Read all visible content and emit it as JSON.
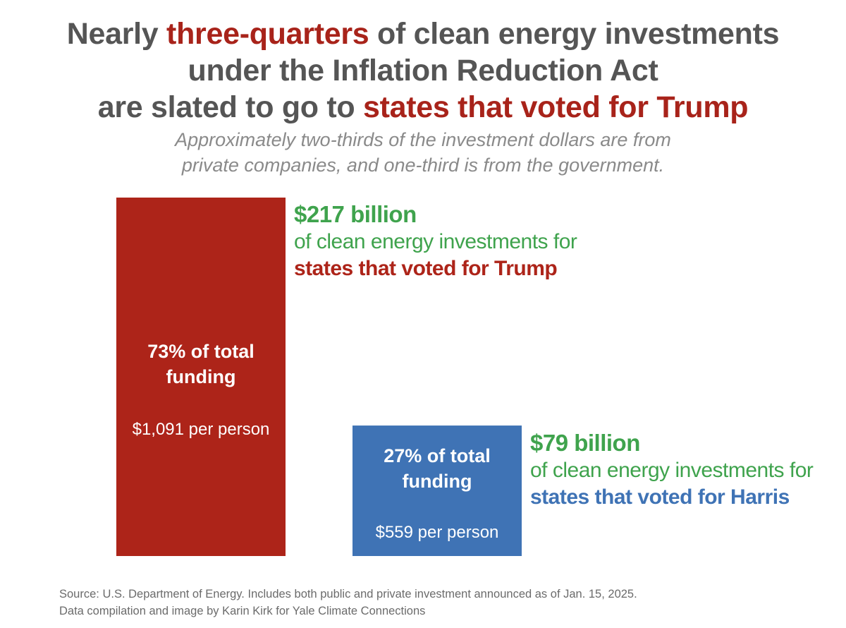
{
  "title": {
    "line1_pre": "Nearly ",
    "line1_hl": "three-quarters",
    "line1_post": " of clean energy investments",
    "line2": "under the Inflation Reduction Act",
    "line3_pre": "are slated to go to ",
    "line3_hl": "states that voted for Trump"
  },
  "subtitle": {
    "line1": "Approximately two-thirds of the investment dollars are from",
    "line2": "private companies, and one-third is from the government."
  },
  "colors": {
    "trump": "#ad2419",
    "harris": "#3f73b5",
    "green": "#3fa34d",
    "title_gray": "#555555",
    "highlight_red": "#a8231a"
  },
  "chart_data": {
    "type": "bar",
    "categories": [
      "Trump",
      "Harris"
    ],
    "values": [
      217,
      79
    ],
    "unit": "billion",
    "bars": [
      {
        "pct_line1": "73% of total",
        "pct_line2": "funding",
        "per_person": "$1,091 per person",
        "amount": "$217 billion",
        "desc": "of clean energy investments for",
        "who": "states that voted for Trump",
        "color": "#ad2419",
        "who_color": "#ad2419"
      },
      {
        "pct_line1": "27% of total",
        "pct_line2": "funding",
        "per_person": "$559 per person",
        "amount": "$79 billion",
        "desc": "of clean energy investments for",
        "who": "states that voted for Harris",
        "color": "#3f73b5",
        "who_color": "#3f73b5"
      }
    ]
  },
  "source": {
    "line1": "Source: U.S. Department of Energy. Includes both public and private investment announced as of Jan. 15, 2025.",
    "line2": "Data compilation and image by Karin Kirk for Yale Climate Connections"
  }
}
